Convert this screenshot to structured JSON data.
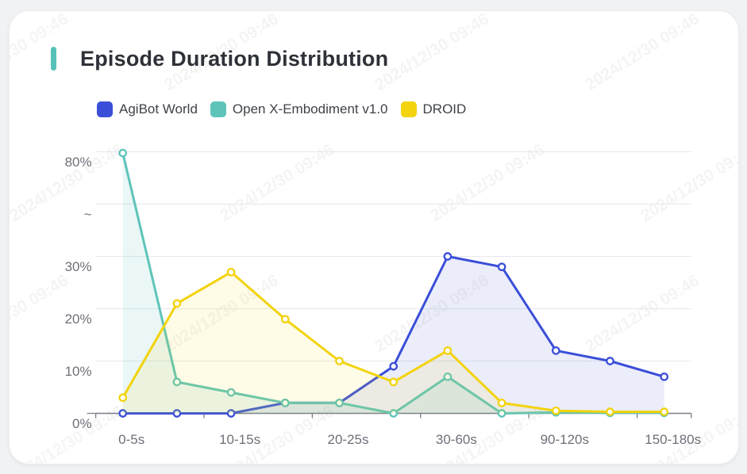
{
  "page": {
    "background": "#F1F2F4"
  },
  "card": {
    "background": "#FFFFFF",
    "accent_color": "#56C2B7"
  },
  "title": "Episode Duration Distribution",
  "watermark": {
    "text": "2024/12/30 09:46"
  },
  "legend": {
    "items": [
      {
        "label": "AgiBot World",
        "color": "#3B4ED8"
      },
      {
        "label": "Open X-Embodiment v1.0",
        "color": "#5EC4B9"
      },
      {
        "label": "DROID",
        "color": "#F2D30D"
      }
    ]
  },
  "chart_data": {
    "type": "line",
    "title": "Episode Duration Distribution",
    "n_categories": 11,
    "x_tick_labels": [
      {
        "index": 0,
        "label": "0-5s"
      },
      {
        "index": 2,
        "label": "10-15s"
      },
      {
        "index": 4,
        "label": "20-25s"
      },
      {
        "index": 6,
        "label": "30-60s"
      },
      {
        "index": 8,
        "label": "90-120s"
      },
      {
        "index": 10,
        "label": "150-180s"
      }
    ],
    "y_axis": {
      "unit": "%",
      "tick_labels": [
        "0%",
        "10%",
        "20%",
        "30%",
        "~",
        "80%"
      ],
      "tick_values": [
        0,
        10,
        20,
        30,
        null,
        80
      ],
      "axis_break_between": [
        30,
        80
      ],
      "grid": true
    },
    "legend_position": "top-left",
    "series": [
      {
        "name": "AgiBot World",
        "color": "#3B4ED8",
        "area_fill": "rgba(59,78,216,0.10)",
        "values": [
          0,
          0,
          0,
          2,
          2,
          9,
          30,
          28,
          12,
          10,
          7
        ]
      },
      {
        "name": "Open X-Embodiment v1.0",
        "color": "#5EC4B9",
        "area_fill": "rgba(94,196,185,0.13)",
        "values": [
          79.4,
          6,
          4,
          2,
          2,
          0,
          7,
          0,
          0.2,
          0.1,
          0.1
        ]
      },
      {
        "name": "DROID",
        "color": "#F2D30D",
        "area_fill": "rgba(242,211,13,0.10)",
        "values": [
          3,
          21,
          27,
          18,
          10,
          6,
          12,
          2,
          0.5,
          0.3,
          0.3
        ]
      }
    ]
  }
}
